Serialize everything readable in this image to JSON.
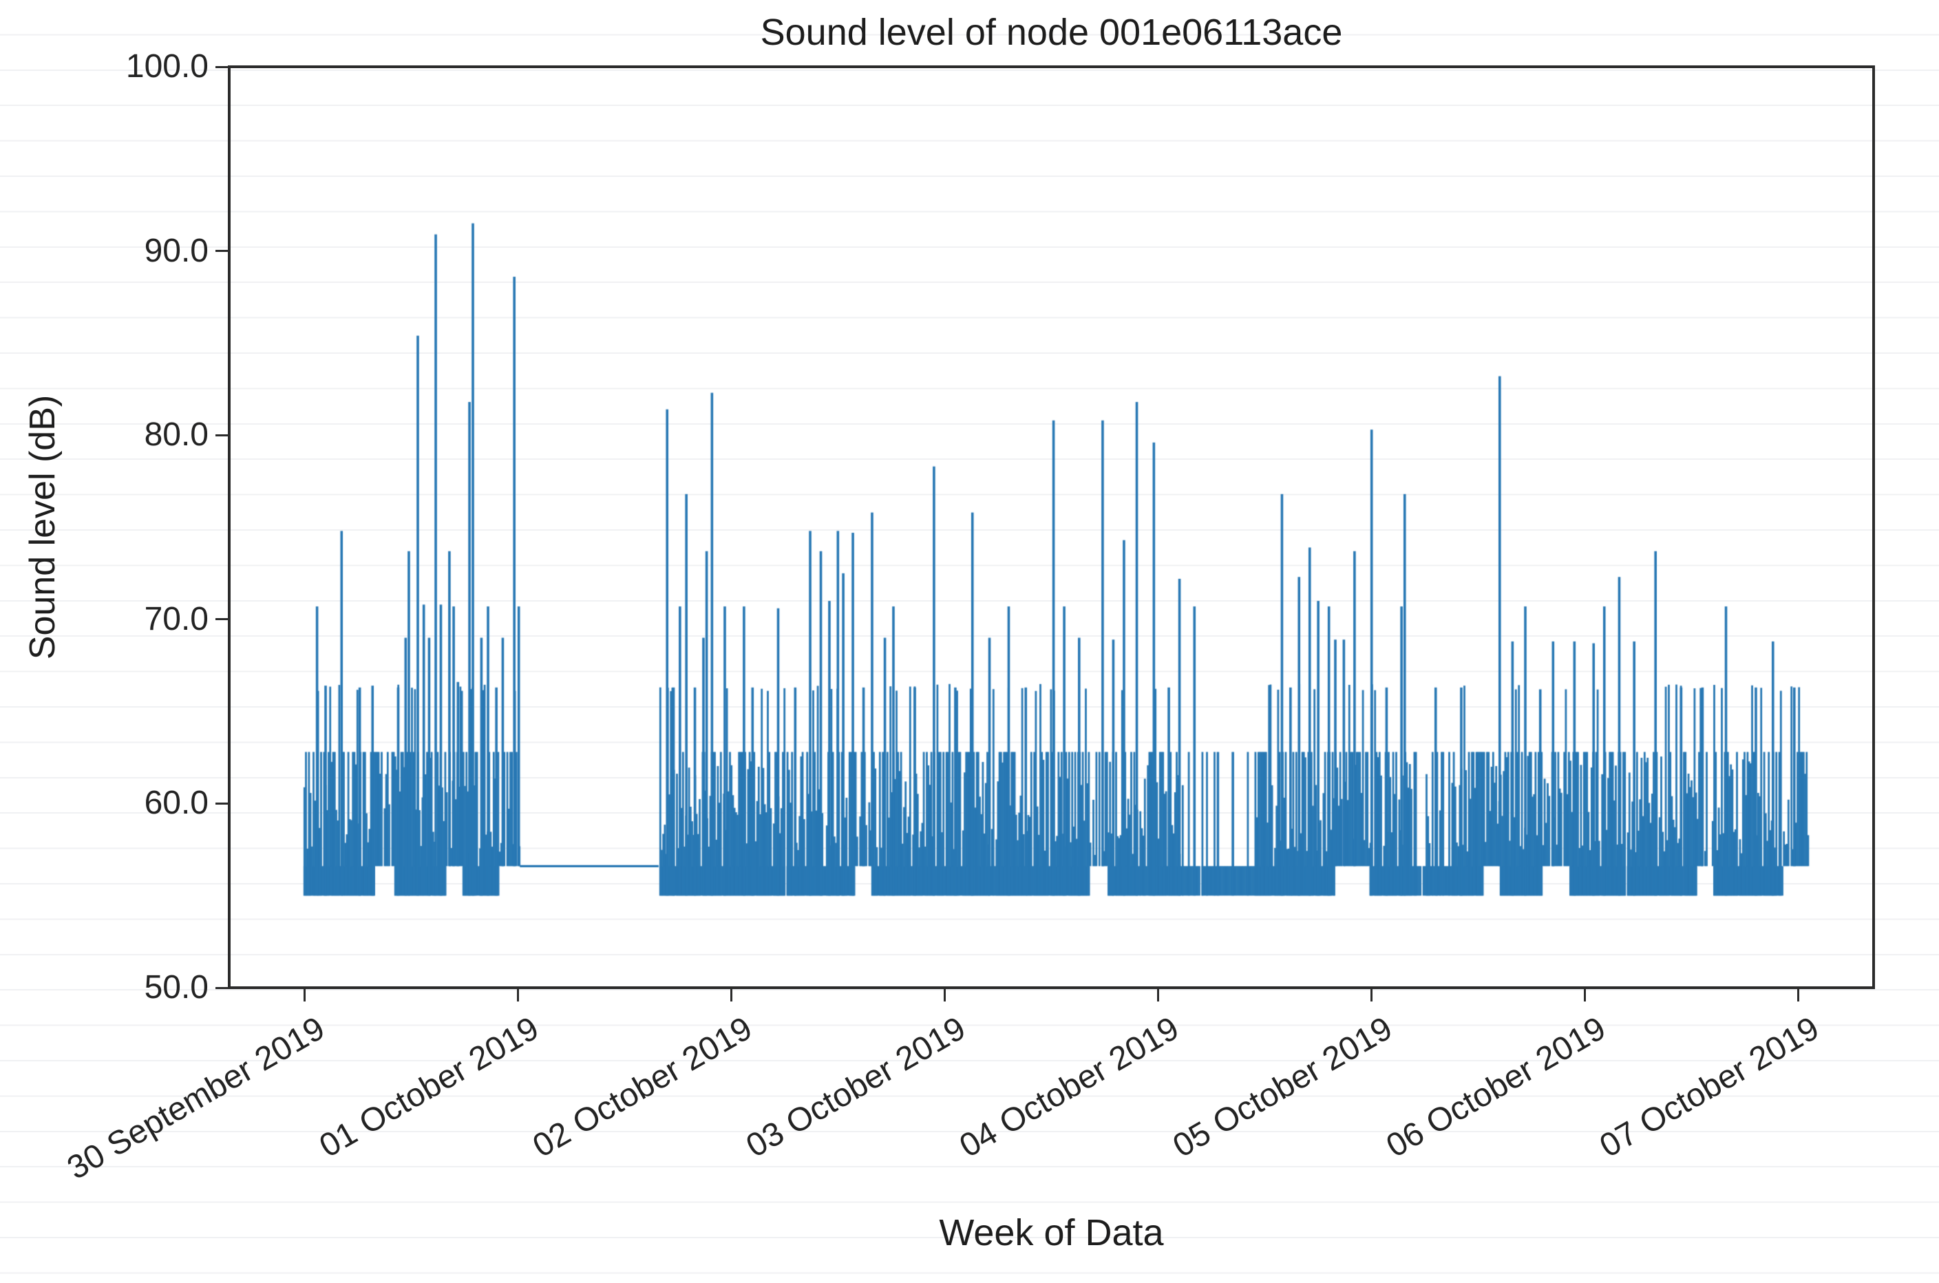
{
  "figure": {
    "title": "Sound level of node 001e06113ace",
    "x_axis_label": "Week of Data",
    "y_axis_label": "Sound level (dB)"
  },
  "chart_data": {
    "type": "line",
    "title": "Sound level of node 001e06113ace",
    "xlabel": "Week of Data",
    "ylabel": "Sound level (dB)",
    "series_name": "sound_level_db",
    "line_color": "#2878b4",
    "axis_color": "#2b2b2b",
    "text_color": "#232323",
    "grid": "off",
    "ylim": [
      50,
      100
    ],
    "yticks": [
      {
        "value": 100,
        "label": "100.0"
      },
      {
        "value": 90,
        "label": "90.0"
      },
      {
        "value": 80,
        "label": "80.0"
      },
      {
        "value": 70,
        "label": "70.0"
      },
      {
        "value": 60,
        "label": "60.0"
      },
      {
        "value": 50,
        "label": "50.0"
      }
    ],
    "xticks": [
      {
        "day": 0,
        "label": "30 September 2019"
      },
      {
        "day": 1,
        "label": "01 October 2019"
      },
      {
        "day": 2,
        "label": "02 October 2019"
      },
      {
        "day": 3,
        "label": "03 October 2019"
      },
      {
        "day": 4,
        "label": "04 October 2019"
      },
      {
        "day": 5,
        "label": "05 October 2019"
      },
      {
        "day": 6,
        "label": "06 October 2019"
      },
      {
        "day": 7,
        "label": "07 October 2019"
      }
    ],
    "x_unit": "days since 30 September 2019 00:00",
    "x_range_days": [
      0,
      7.05
    ],
    "noise_floor_db": 55.0,
    "noise_floor_top_db": 56.6,
    "dense_band_top_db": 62.8,
    "common_spike_db": 66.3,
    "data_gap": {
      "start_day": 1.01,
      "end_day": 1.66,
      "flat_level_db": 56.6
    },
    "sparse_segments": [
      {
        "start_day": 4.12,
        "end_day": 4.45,
        "stroke_p": 0.1
      },
      {
        "start_day": 5.18,
        "end_day": 5.38,
        "stroke_p": 0.45
      }
    ],
    "raised_floor_segments": [
      [
        0.33,
        0.42
      ],
      [
        0.66,
        0.74
      ],
      [
        0.91,
        1.01
      ],
      [
        2.58,
        2.66
      ],
      [
        3.68,
        3.76
      ],
      [
        4.83,
        4.99
      ],
      [
        5.52,
        5.6
      ],
      [
        5.8,
        5.93
      ],
      [
        6.52,
        6.6
      ],
      [
        6.93,
        7.05
      ]
    ],
    "major_peaks": [
      [
        0.06,
        70.7
      ],
      [
        0.1,
        66.4
      ],
      [
        0.175,
        74.8
      ],
      [
        0.26,
        66.3
      ],
      [
        0.32,
        66.4
      ],
      [
        0.44,
        66.3
      ],
      [
        0.475,
        69.0
      ],
      [
        0.49,
        73.7
      ],
      [
        0.532,
        85.4
      ],
      [
        0.56,
        70.8
      ],
      [
        0.585,
        69.0
      ],
      [
        0.616,
        90.9
      ],
      [
        0.64,
        70.8
      ],
      [
        0.68,
        73.7
      ],
      [
        0.7,
        70.7
      ],
      [
        0.72,
        66.6
      ],
      [
        0.774,
        81.8
      ],
      [
        0.79,
        91.5
      ],
      [
        0.83,
        69.0
      ],
      [
        0.861,
        70.7
      ],
      [
        0.9,
        66.3
      ],
      [
        0.93,
        69.0
      ],
      [
        0.984,
        88.6
      ],
      [
        1.005,
        70.7
      ],
      [
        1.7,
        81.4
      ],
      [
        1.73,
        66.3
      ],
      [
        1.76,
        70.7
      ],
      [
        1.79,
        76.8
      ],
      [
        1.83,
        66.3
      ],
      [
        1.87,
        69.0
      ],
      [
        1.885,
        73.7
      ],
      [
        1.91,
        82.3
      ],
      [
        1.97,
        70.7
      ],
      [
        2.06,
        70.7
      ],
      [
        2.1,
        66.3
      ],
      [
        2.22,
        70.6
      ],
      [
        2.3,
        66.3
      ],
      [
        2.37,
        74.8
      ],
      [
        2.42,
        73.7
      ],
      [
        2.46,
        71.0
      ],
      [
        2.5,
        74.8
      ],
      [
        2.525,
        72.5
      ],
      [
        2.57,
        74.7
      ],
      [
        2.62,
        66.3
      ],
      [
        2.66,
        75.8
      ],
      [
        2.72,
        69.0
      ],
      [
        2.76,
        70.7
      ],
      [
        2.86,
        66.3
      ],
      [
        2.95,
        78.3
      ],
      [
        3.05,
        66.3
      ],
      [
        3.13,
        75.8
      ],
      [
        3.21,
        69.0
      ],
      [
        3.3,
        70.7
      ],
      [
        3.38,
        66.3
      ],
      [
        3.51,
        80.8
      ],
      [
        3.56,
        70.7
      ],
      [
        3.63,
        69.0
      ],
      [
        3.74,
        80.8
      ],
      [
        3.79,
        68.9
      ],
      [
        3.84,
        74.3
      ],
      [
        3.9,
        81.8
      ],
      [
        3.98,
        79.6
      ],
      [
        4.05,
        66.3
      ],
      [
        4.1,
        72.2
      ],
      [
        4.17,
        70.7
      ],
      [
        4.28,
        62.8
      ],
      [
        4.35,
        62.8
      ],
      [
        4.58,
        76.8
      ],
      [
        4.62,
        66.3
      ],
      [
        4.66,
        72.3
      ],
      [
        4.71,
        73.9
      ],
      [
        4.75,
        71.0
      ],
      [
        4.8,
        70.7
      ],
      [
        4.83,
        68.9
      ],
      [
        4.87,
        68.9
      ],
      [
        4.92,
        73.7
      ],
      [
        5.0,
        80.3
      ],
      [
        5.07,
        66.3
      ],
      [
        5.14,
        70.7
      ],
      [
        5.155,
        76.8
      ],
      [
        5.3,
        66.3
      ],
      [
        5.42,
        66.3
      ],
      [
        5.6,
        83.2
      ],
      [
        5.66,
        68.8
      ],
      [
        5.72,
        70.7
      ],
      [
        5.79,
        66.2
      ],
      [
        5.85,
        68.8
      ],
      [
        5.95,
        68.8
      ],
      [
        6.04,
        68.7
      ],
      [
        6.09,
        70.7
      ],
      [
        6.16,
        72.3
      ],
      [
        6.23,
        68.8
      ],
      [
        6.33,
        73.7
      ],
      [
        6.45,
        66.3
      ],
      [
        6.55,
        66.3
      ],
      [
        6.66,
        70.7
      ],
      [
        6.8,
        66.3
      ],
      [
        6.88,
        68.8
      ],
      [
        6.98,
        66.3
      ]
    ]
  }
}
